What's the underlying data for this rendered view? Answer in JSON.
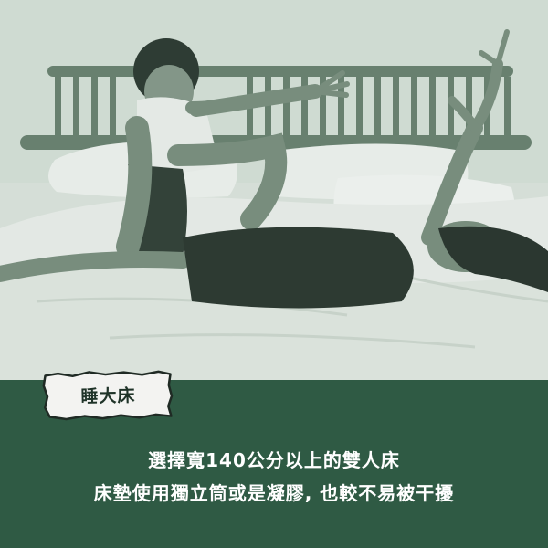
{
  "tag": {
    "label": "睡大床"
  },
  "caption": {
    "line1": "選擇寬140公分以上的雙人床",
    "line2": "床墊使用獨立筒或是凝膠, 也較不易被干擾"
  },
  "colors": {
    "panel": "#2f5a44",
    "photo_tint": "#dfe7e0",
    "text": "#ffffff",
    "tag_paper": "#f3f3f1"
  }
}
